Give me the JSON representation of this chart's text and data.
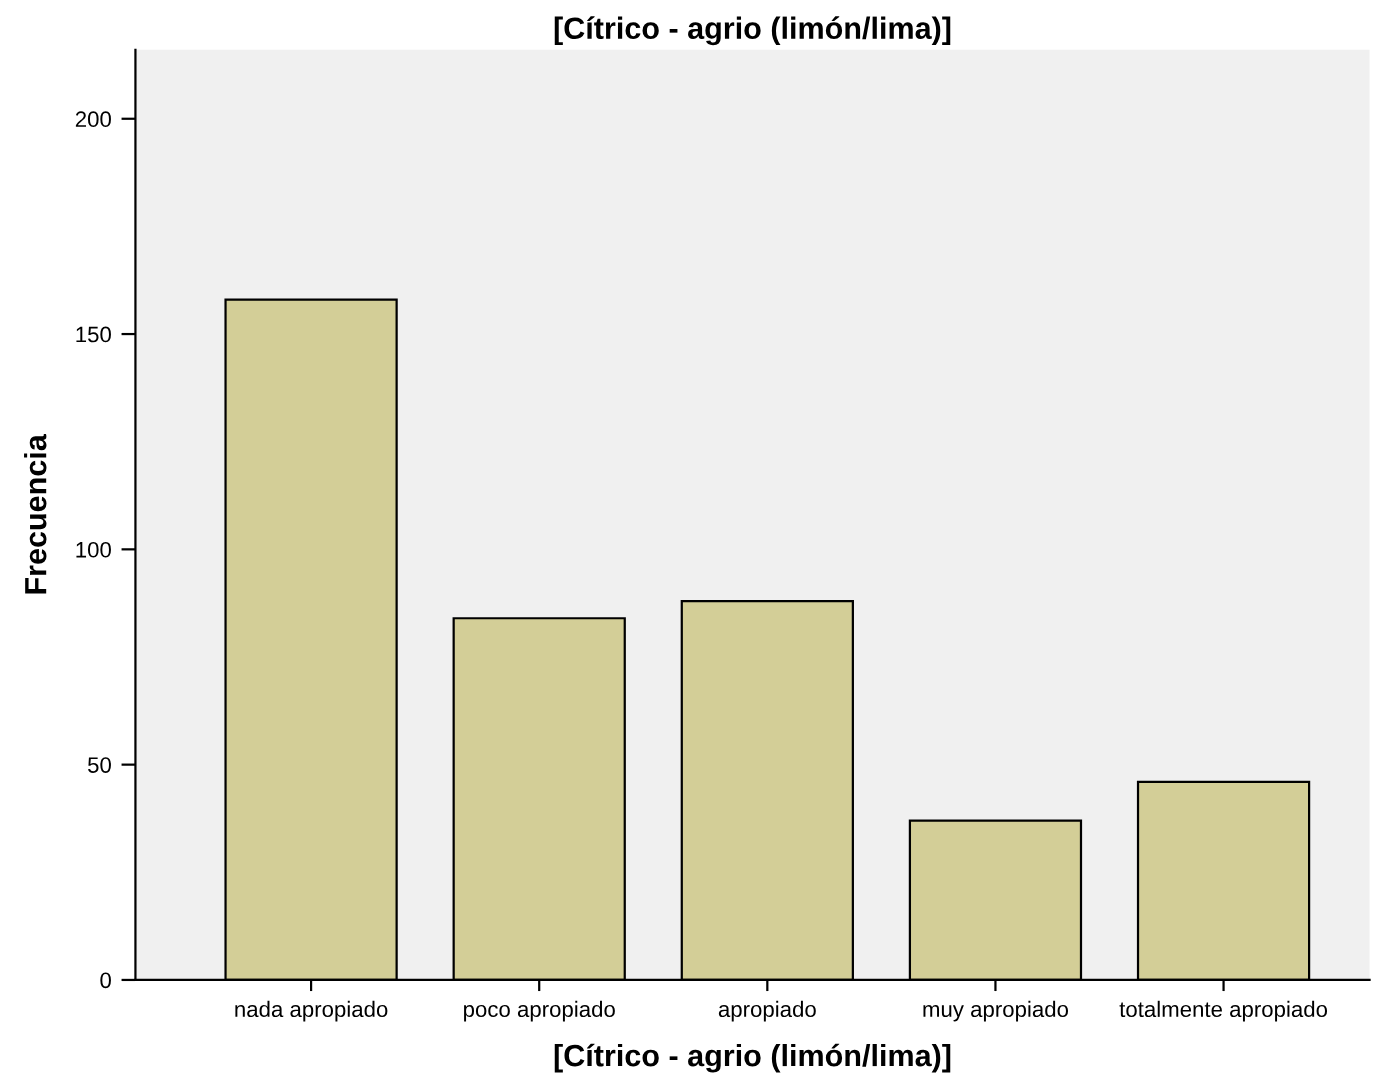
{
  "chart_data": {
    "type": "bar",
    "title": "[Cítrico - agrio (limón/lima)]",
    "xlabel": "[Cítrico - agrio (limón/lima)]",
    "ylabel": "Frecuencia",
    "categories": [
      "nada apropiado",
      "poco apropiado",
      "apropiado",
      "muy apropiado",
      "totalmente apropiado"
    ],
    "values": [
      158,
      84,
      88,
      37,
      46
    ],
    "color": "#d3ce97",
    "ylim": [
      0,
      216
    ],
    "yticks": [
      0,
      50,
      100,
      150,
      200
    ],
    "grid": false,
    "legend": false
  }
}
